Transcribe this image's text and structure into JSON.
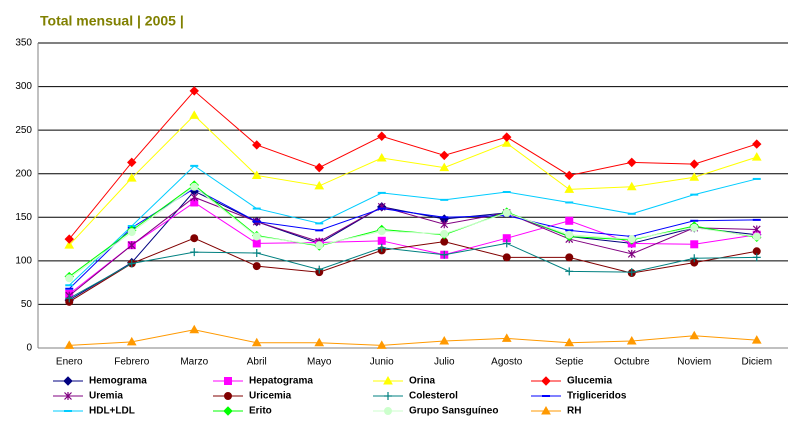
{
  "chart_data": {
    "type": "line",
    "title": "Total mensual | 2005 |",
    "categories": [
      "Enero",
      "Febrero",
      "Marzo",
      "Abril",
      "Mayo",
      "Junio",
      "Julio",
      "Agosto",
      "Septie",
      "Octubre",
      "Noviem",
      "Diciem"
    ],
    "ylim": [
      0,
      350
    ],
    "yticks": [
      0,
      50,
      100,
      150,
      200,
      250,
      300,
      350
    ],
    "grid": true,
    "series": [
      {
        "name": "Hemograma",
        "color": "#000080",
        "marker": "diamond",
        "values": [
          55,
          98,
          180,
          145,
          120,
          162,
          148,
          155,
          128,
          120,
          138,
          130
        ]
      },
      {
        "name": "Hepatograma",
        "color": "#ff00ff",
        "marker": "square",
        "values": [
          62,
          118,
          167,
          120,
          121,
          123,
          107,
          126,
          146,
          120,
          119,
          130
        ]
      },
      {
        "name": "Orina",
        "color": "#ffff00",
        "marker": "triangle",
        "values": [
          118,
          195,
          267,
          198,
          186,
          218,
          207,
          235,
          182,
          185,
          196,
          219
        ]
      },
      {
        "name": "Glucemia",
        "color": "#ff0000",
        "marker": "diamond",
        "values": [
          125,
          213,
          295,
          233,
          207,
          243,
          221,
          242,
          198,
          213,
          211,
          234
        ]
      },
      {
        "name": "Uremia",
        "color": "#800080",
        "marker": "star",
        "values": [
          60,
          118,
          173,
          145,
          122,
          162,
          142,
          155,
          125,
          108,
          138,
          136
        ]
      },
      {
        "name": "Uricemia",
        "color": "#800000",
        "marker": "circle",
        "values": [
          53,
          97,
          126,
          94,
          87,
          112,
          122,
          104,
          104,
          86,
          98,
          111
        ]
      },
      {
        "name": "Colesterol",
        "color": "#008080",
        "marker": "plus",
        "values": [
          57,
          97,
          110,
          109,
          90,
          115,
          107,
          120,
          88,
          87,
          103,
          104
        ]
      },
      {
        "name": "Trigliceridos",
        "color": "#0000ff",
        "marker": "dash",
        "values": [
          68,
          138,
          183,
          145,
          135,
          160,
          150,
          152,
          135,
          128,
          146,
          147
        ]
      },
      {
        "name": "HDL+LDL",
        "color": "#00ccff",
        "marker": "dash",
        "values": [
          72,
          140,
          209,
          160,
          143,
          178,
          170,
          179,
          167,
          154,
          176,
          194
        ]
      },
      {
        "name": "Erito",
        "color": "#00ff00",
        "marker": "diamond",
        "values": [
          82,
          135,
          187,
          129,
          117,
          136,
          130,
          156,
          128,
          124,
          140,
          127
        ]
      },
      {
        "name": "Grupo Sansguíneo",
        "color": "#ccffcc",
        "marker": "circle",
        "values": [
          80,
          133,
          185,
          128,
          118,
          134,
          131,
          155,
          130,
          125,
          138,
          128
        ]
      },
      {
        "name": "RH",
        "color": "#ff9900",
        "marker": "triangle",
        "values": [
          3,
          7,
          21,
          6,
          6,
          3,
          8,
          11,
          6,
          8,
          14,
          9
        ]
      }
    ]
  }
}
